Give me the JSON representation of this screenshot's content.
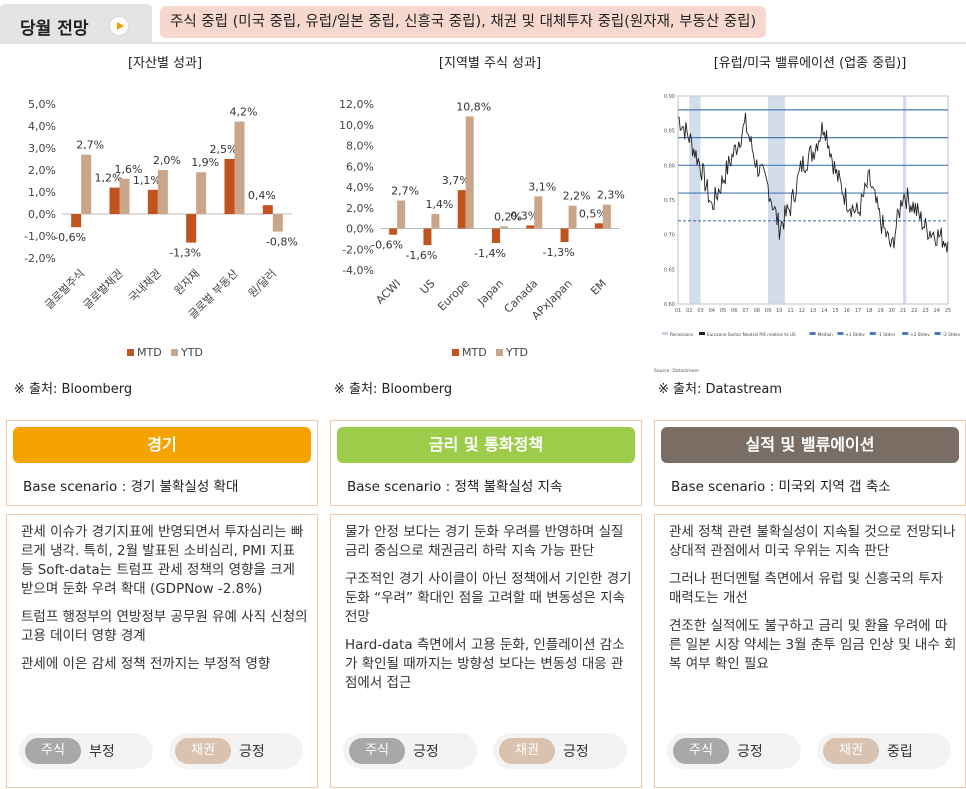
{
  "header": {
    "title": "당월 전망",
    "play_icon": "play-circle-icon",
    "summary": "주식 중립 (미국 중립, 유럽/일본 중립, 신흥국 중립), 채권 및 대체투자 중립(원자재, 부동산 중립)"
  },
  "colors": {
    "mtd": "#c0531e",
    "ytd": "#c9a68a",
    "accent_orange": "#f5a300",
    "accent_green": "#9ccc4a",
    "accent_brown": "#7a6e64"
  },
  "charts": [
    {
      "title": "[자산별 성과]",
      "source": "※ 출처: Bloomberg",
      "legend": [
        "MTD",
        "YTD"
      ]
    },
    {
      "title": "[지역별 주식 성과]",
      "source": "※ 출처: Bloomberg",
      "legend": [
        "MTD",
        "YTD"
      ]
    },
    {
      "title": "[유럽/미국 밸류에이션 (업종 중립)]",
      "source": "※ 출처: Datastream"
    }
  ],
  "chart_data": [
    {
      "type": "bar",
      "title": "[자산별 성과]",
      "categories": [
        "글로벌주식",
        "글로벌채권",
        "국내채권",
        "원자재",
        "글로벌 부동산",
        "원/달러"
      ],
      "series": [
        {
          "name": "MTD",
          "values": [
            -0.6,
            1.2,
            1.1,
            -1.3,
            2.5,
            0.4
          ]
        },
        {
          "name": "YTD",
          "values": [
            2.7,
            1.6,
            2.0,
            1.9,
            4.2,
            -0.8
          ]
        }
      ],
      "data_labels": [
        [
          "-0,6%",
          "1,2%",
          "1,1%",
          "-1,3%",
          "2,5%",
          "0,4%"
        ],
        [
          "2,7%",
          "1,6%",
          "2,0%",
          "1,9%",
          "4,2%",
          "-0,8%"
        ]
      ],
      "yticks": [
        "5,0%",
        "4,0%",
        "3,0%",
        "2,0%",
        "1,0%",
        "0,0%",
        "-1,0%",
        "-2,0%"
      ],
      "ylim": [
        -2,
        5
      ],
      "legend": "bottom"
    },
    {
      "type": "bar",
      "title": "[지역별 주식 성과]",
      "categories": [
        "ACWI",
        "US",
        "Europe",
        "Japan",
        "Canada",
        "APxJapan",
        "EM"
      ],
      "series": [
        {
          "name": "MTD",
          "values": [
            -0.6,
            -1.6,
            3.7,
            -1.4,
            0.3,
            -1.3,
            0.5
          ]
        },
        {
          "name": "YTD",
          "values": [
            2.7,
            1.4,
            10.8,
            0.2,
            3.1,
            2.2,
            2.3
          ]
        }
      ],
      "data_labels": [
        [
          "-0,6%",
          "-1,6%",
          "3,7%",
          "-1,4%",
          "0,3%",
          "-1,3%",
          "0,5%"
        ],
        [
          "2,7%",
          "1,4%",
          "10,8%",
          "0,2%",
          "3,1%",
          "2,2%",
          "2,3%"
        ]
      ],
      "yticks": [
        "12,0%",
        "10,0%",
        "8,0%",
        "6,0%",
        "4,0%",
        "2,0%",
        "0,0%",
        "-2,0%",
        "-4,0%"
      ],
      "ylim": [
        -4,
        12
      ],
      "legend": "bottom"
    },
    {
      "type": "line",
      "title": "[유럽/미국 밸류에이션 (업종 중립)]",
      "xticks": [
        "01",
        "02",
        "03",
        "04",
        "05",
        "06",
        "07",
        "08",
        "09",
        "10",
        "11",
        "12",
        "13",
        "14",
        "15",
        "16",
        "17",
        "18",
        "19",
        "20",
        "21",
        "22",
        "23",
        "24",
        "25"
      ],
      "yticks": [
        "0.90",
        "0.85",
        "0.80",
        "0.75",
        "0.70",
        "0.65",
        "0.60"
      ],
      "ylim": [
        0.6,
        0.9
      ],
      "reference_lines": [
        0.88,
        0.84,
        0.8,
        0.76,
        0.72
      ],
      "recession_shading": [
        [
          1,
          2
        ],
        [
          8,
          9.5
        ],
        [
          20,
          20.3
        ]
      ],
      "legend_items": [
        "Recessions",
        "Eurozone Sector Neutral P/E relative to US",
        "Median",
        "+1 Stdev",
        "-1 Stdev",
        "+2 Stdev",
        "-2 Stdev"
      ],
      "source_note": "Source: Datastream",
      "series": [
        {
          "name": "Eurozone Sector Neutral P/E relative to US",
          "values": [
            0.87,
            0.84,
            0.8,
            0.74,
            0.78,
            0.82,
            0.86,
            0.8,
            0.77,
            0.71,
            0.74,
            0.8,
            0.82,
            0.86,
            0.79,
            0.75,
            0.73,
            0.78,
            0.72,
            0.68,
            0.76,
            0.74,
            0.71,
            0.7,
            0.69
          ]
        }
      ]
    }
  ],
  "cards": [
    {
      "head": "경기",
      "scenario": "Base scenario : 경기 불확실성 확대",
      "paragraphs": [
        "관세 이슈가 경기지표에 반영되면서 투자심리는 빠르게 냉각. 특히, 2월 발표된 소비심리, PMI 지표 등 Soft-data는 트럼프 관세 정책의 영향을 크게 받으며 둔화 우려 확대 (GDPNow -2.8%)",
        "트럼프 행정부의 연방정부 공무원 유예 사직 신청의 고용 데이터 영향 경계",
        "관세에 이은 감세 정책 전까지는 부정적 영향"
      ],
      "pills": [
        {
          "tag": "주식",
          "value": "부정"
        },
        {
          "tag": "채권",
          "value": "긍정"
        }
      ]
    },
    {
      "head": "금리 및 통화정책",
      "scenario": "Base scenario : 정책 불확실성 지속",
      "paragraphs": [
        "물가 안정 보다는 경기 둔화 우려를 반영하며 실질금리 중심으로 채권금리 하락 지속 가능 판단",
        "구조적인 경기 사이클이 아닌 정책에서 기인한 경기 둔화 “우려” 확대인 점을 고려할 때 변동성은 지속 전망",
        "Hard-data 측면에서 고용 둔화, 인플레이션 감소가 확인될 때까지는 방향성 보다는 변동성 대응 관점에서 접근"
      ],
      "pills": [
        {
          "tag": "주식",
          "value": "긍정"
        },
        {
          "tag": "채권",
          "value": "긍정"
        }
      ]
    },
    {
      "head": "실적 및 밸류에이션",
      "scenario": "Base scenario : 미국외 지역 갭 축소",
      "paragraphs": [
        "관세 정책 관련 불확실성이 지속될 것으로 전망되나 상대적 관점에서 미국 우위는 지속 판단",
        "그러나 펀더멘털 측면에서 유럽 및 신흥국의 투자 매력도는 개선",
        "견조한 실적에도 불구하고 금리 및 환율 우려에 따른 일본 시장 약세는 3월 춘투 임금 인상 및 내수 회복 여부 확인 필요"
      ],
      "pills": [
        {
          "tag": "주식",
          "value": "긍정"
        },
        {
          "tag": "채권",
          "value": "중립"
        }
      ]
    }
  ]
}
